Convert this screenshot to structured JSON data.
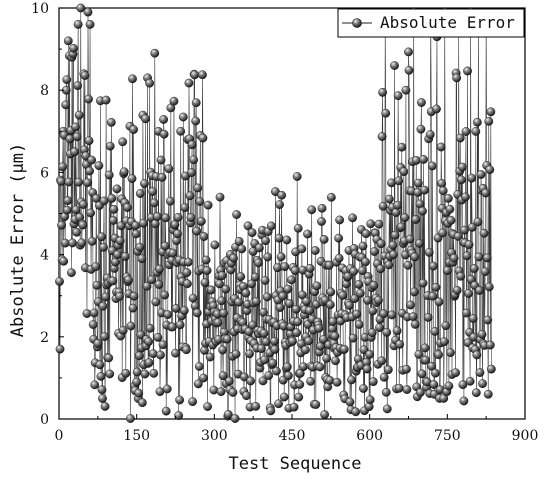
{
  "chart_data": {
    "type": "line",
    "title": "",
    "xlabel": "Test Sequence",
    "ylabel": "Absolute Error (μm)",
    "xlim": [
      0,
      900
    ],
    "ylim": [
      0,
      10
    ],
    "xticks": [
      0,
      150,
      300,
      450,
      600,
      750,
      900
    ],
    "yticks": [
      0,
      2,
      4,
      6,
      8,
      10
    ],
    "grid": false,
    "legend_position": "top-right",
    "marker": "sphere",
    "colors": {
      "line": "#222222",
      "marker_dark": "#111111",
      "marker_light": "#f0f0f0"
    },
    "series": [
      {
        "name": "Absolute Error",
        "segments": [
          {
            "x_start": 1,
            "x_end": 65,
            "min": 0.8,
            "max": 10.0,
            "peaks": [
              [
                2,
                1.7
              ],
              [
                8,
                7.0
              ],
              [
                14,
                8.0
              ],
              [
                18,
                9.2
              ],
              [
                25,
                8.8
              ],
              [
                30,
                6.5
              ],
              [
                37,
                9.6
              ],
              [
                42,
                10.0
              ],
              [
                48,
                8.4
              ],
              [
                52,
                6.4
              ],
              [
                56,
                9.9
              ],
              [
                60,
                9.6
              ],
              [
                63,
                6.3
              ]
            ]
          },
          {
            "x_start": 66,
            "x_end": 280,
            "min": 0.0,
            "max": 8.9,
            "peaks": [
              [
                95,
                3.3
              ],
              [
                113,
                4.0
              ],
              [
                140,
                4.8
              ],
              [
                160,
                3.9
              ],
              [
                185,
                8.9
              ],
              [
                197,
                6.3
              ],
              [
                215,
                5.3
              ],
              [
                235,
                7.0
              ],
              [
                255,
                4.9
              ],
              [
                270,
                3.6
              ]
            ]
          },
          {
            "x_start": 281,
            "x_end": 620,
            "min": 0.0,
            "max": 5.9,
            "peaks": [
              [
                300,
                2.6
              ],
              [
                320,
                3.8
              ],
              [
                365,
                4.7
              ],
              [
                385,
                3.8
              ],
              [
                425,
                4.4
              ],
              [
                460,
                5.9
              ],
              [
                480,
                4.5
              ],
              [
                495,
                4.1
              ],
              [
                540,
                4.4
              ],
              [
                560,
                4.1
              ],
              [
                580,
                2.3
              ],
              [
                605,
                2.1
              ]
            ]
          },
          {
            "x_start": 621,
            "x_end": 835,
            "min": 0.1,
            "max": 9.9,
            "peaks": [
              [
                630,
                9.6
              ],
              [
                648,
                8.6
              ],
              [
                670,
                8.0
              ],
              [
                685,
                9.9
              ],
              [
                700,
                7.7
              ],
              [
                718,
                9.7
              ],
              [
                730,
                9.3
              ],
              [
                745,
                9.9
              ],
              [
                768,
                8.3
              ],
              [
                795,
                9.9
              ],
              [
                810,
                9.7
              ],
              [
                825,
                9.8
              ],
              [
                833,
                1.8
              ]
            ]
          }
        ]
      }
    ]
  }
}
